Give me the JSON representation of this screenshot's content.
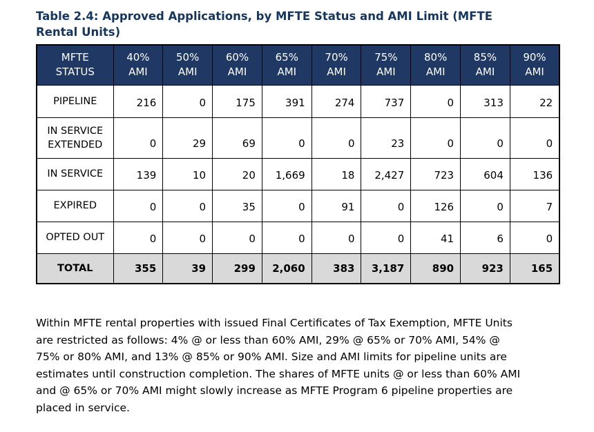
{
  "title": "Table 2.4: Approved Applications, by MFTE Status and AMI Limit (MFTE\nRental Units)",
  "table": {
    "header": [
      "MFTE\nSTATUS",
      "40%\nAMI",
      "50%\nAMI",
      "60%\nAMI",
      "65%\nAMI",
      "70%\nAMI",
      "75%\nAMI",
      "80%\nAMI",
      "85%\nAMI",
      "90%\nAMI"
    ],
    "rows": [
      {
        "label": "PIPELINE",
        "values": [
          "216",
          "0",
          "175",
          "391",
          "274",
          "737",
          "0",
          "313",
          "22"
        ]
      },
      {
        "label": "IN SERVICE\nEXTENDED",
        "values": [
          "0",
          "29",
          "69",
          "0",
          "0",
          "23",
          "0",
          "0",
          "0"
        ]
      },
      {
        "label": "IN SERVICE",
        "values": [
          "139",
          "10",
          "20",
          "1,669",
          "18",
          "2,427",
          "723",
          "604",
          "136"
        ]
      },
      {
        "label": "EXPIRED",
        "values": [
          "0",
          "0",
          "35",
          "0",
          "91",
          "0",
          "126",
          "0",
          "7"
        ]
      },
      {
        "label": "OPTED OUT",
        "values": [
          "0",
          "0",
          "0",
          "0",
          "0",
          "0",
          "41",
          "6",
          "0"
        ]
      }
    ],
    "total": {
      "label": "TOTAL",
      "values": [
        "355",
        "39",
        "299",
        "2,060",
        "383",
        "3,187",
        "890",
        "923",
        "165"
      ]
    }
  },
  "note": "Within MFTE rental properties with issued Final Certificates of Tax Exemption, MFTE Units\nare restricted as follows: 4% @ or less than 60% AMI, 29% @ 65% or 70% AMI, 54% @\n75% or 80% AMI, and 13% @ 85% or 90% AMI. Size and AMI limits for pipeline units are\nestimates until construction completion. The shares of MFTE units @ or less than 60% AMI\nand @ 65% or 70% AMI might slowly increase as MFTE Program 6 pipeline properties are\nplaced in service.",
  "colors": {
    "header_bg": "#1F3864",
    "header_text": "#FFFFFF",
    "total_bg": "#D9D9D9",
    "title_color": "#17365D",
    "border_color": "#000000",
    "body_text": "#000000"
  }
}
